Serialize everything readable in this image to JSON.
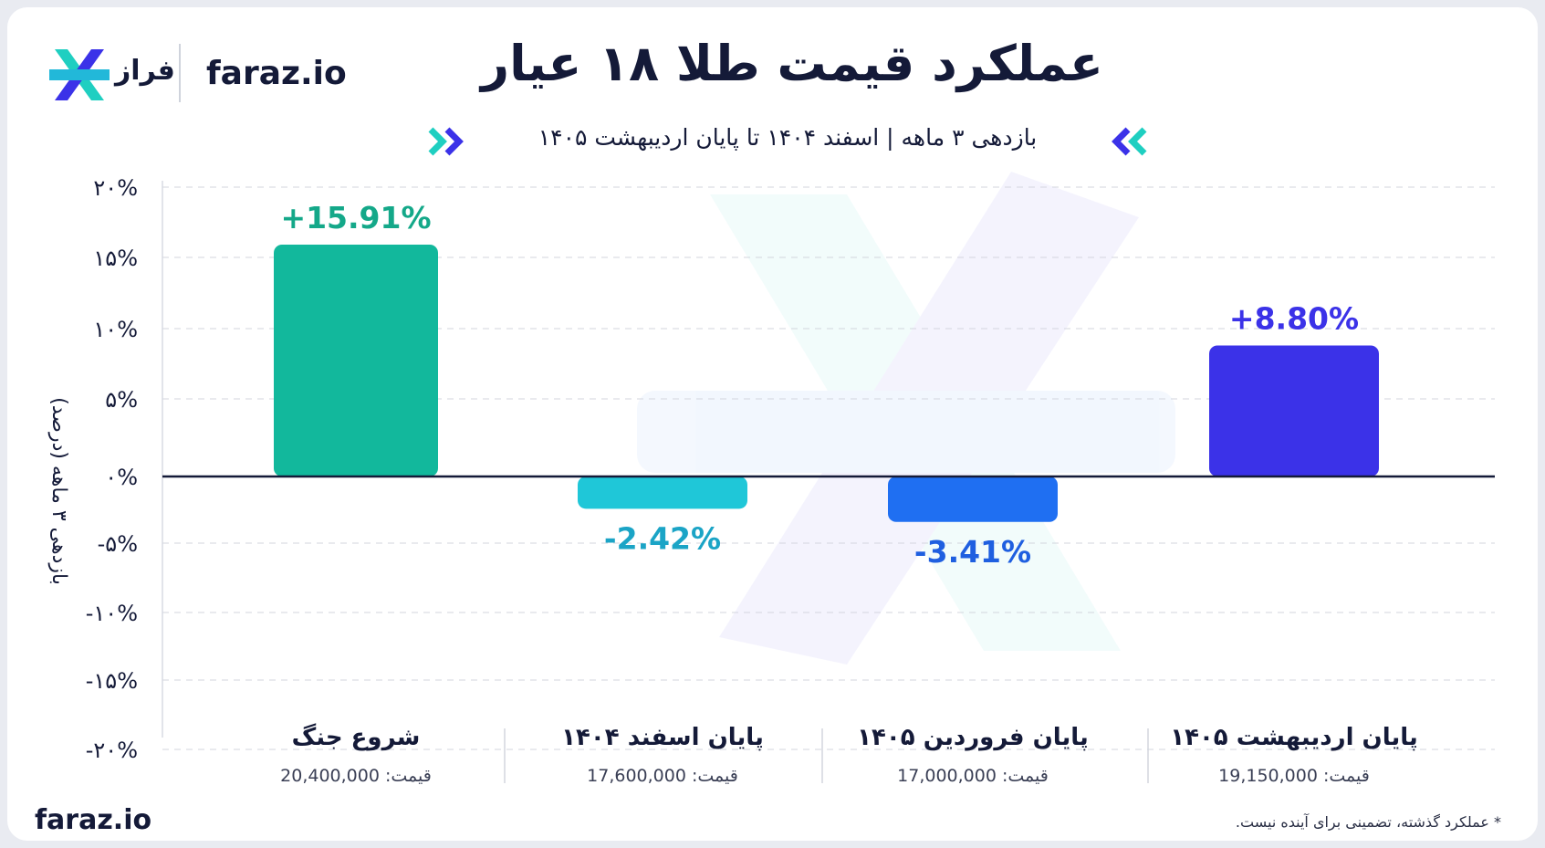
{
  "header": {
    "brand_fa": "فراز",
    "brand_en": "faraz.io",
    "title": "عملکرد قیمت طلا ۱۸ عیار",
    "subtitle": "بازدهی ۳ ماهه | اسفند ۱۴۰۴ تا پایان اردیبهشت ۱۴۰۵"
  },
  "footer": {
    "brand": "faraz.io",
    "note": "* عملکرد گذشته، تضمینی برای آینده نیست."
  },
  "colors": {
    "dark": "#141a38",
    "bar1": "#12b89c",
    "bar2": "#1fc7d8",
    "bar3": "#1f6ff2",
    "bar4": "#3b32e8",
    "label1": "#14a889",
    "label2": "#1ba4c6",
    "label3": "#1f5fe0",
    "label4": "#3b32e8"
  },
  "chart_data": {
    "type": "bar",
    "title": "عملکرد قیمت طلا ۱۸ عیار",
    "ylabel": "بازدهی ۳ ماهه (درصد)",
    "ylim": [
      -20,
      20
    ],
    "yticks": [
      20,
      15,
      10,
      5,
      0,
      -5,
      -10,
      -15,
      -20
    ],
    "ytick_labels": [
      "۲۰%",
      "۱۵%",
      "۱۰%",
      "۵%",
      "۰%",
      "-۵%",
      "-۱۰%",
      "-۱۵%",
      "-۲۰%"
    ],
    "grid": true,
    "categories": [
      "شروع جنگ",
      "پایان اسفند ۱۴۰۴",
      "پایان فروردین ۱۴۰۵",
      "پایان اردیبهشت ۱۴۰۵"
    ],
    "price_labels": [
      "قیمت: 20,400,000",
      "قیمت: 17,600,000",
      "قیمت: 17,000,000",
      "قیمت: 19,150,000"
    ],
    "values": [
      15.91,
      -2.42,
      -3.41,
      8.8
    ],
    "value_labels": [
      "+15.91%",
      "-2.42%",
      "-3.41%",
      "+8.80%"
    ]
  }
}
